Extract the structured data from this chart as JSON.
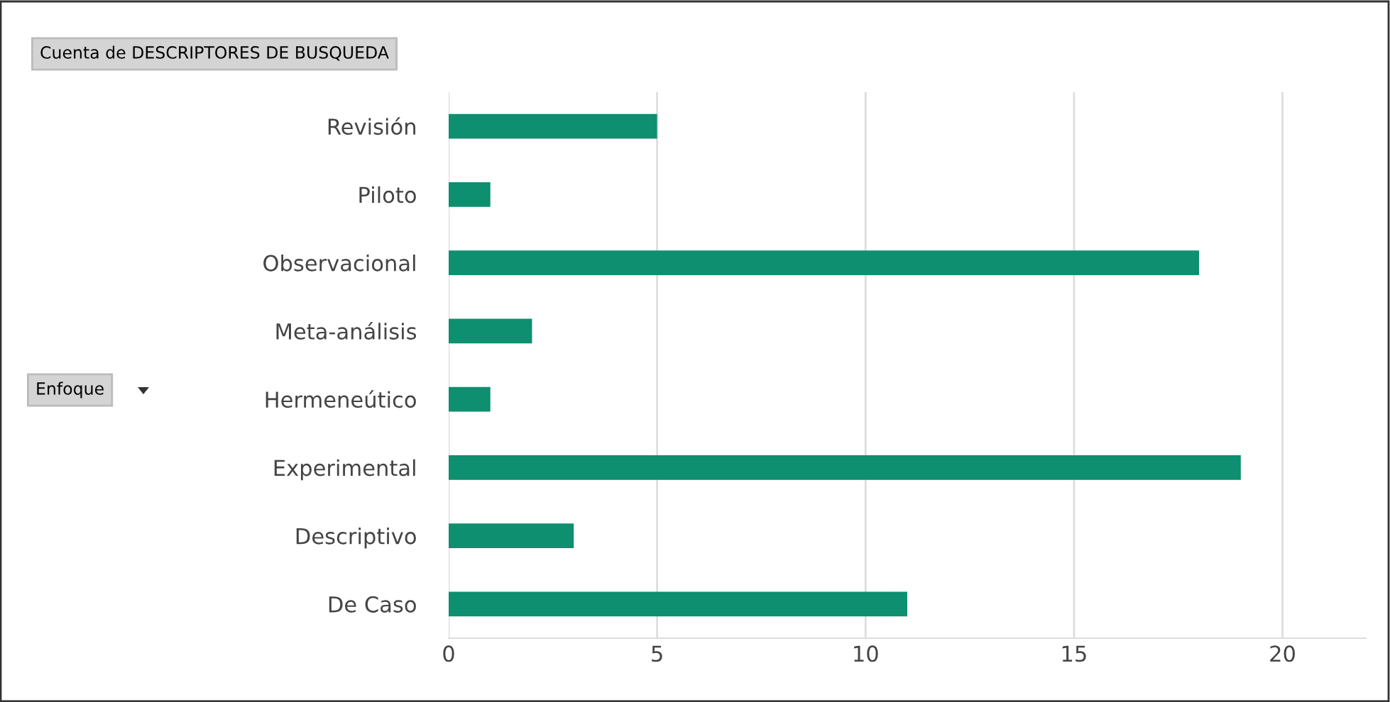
{
  "chart_data": {
    "type": "bar",
    "orientation": "horizontal",
    "title": "Cuenta de DESCRIPTORES DE BUSQUEDA",
    "annotations": [
      "Enfoque"
    ],
    "categories": [
      "Revisión",
      "Piloto",
      "Observacional",
      "Meta-análisis",
      "Hermeneútico",
      "Experimental",
      "Descriptivo",
      "De Caso"
    ],
    "values": [
      5,
      1,
      18,
      2,
      1,
      19,
      3,
      11
    ],
    "color": "#0e8f6f",
    "xlim": [
      0,
      22
    ],
    "xticks": [
      0,
      5,
      10,
      15,
      20
    ],
    "grid": "x"
  }
}
